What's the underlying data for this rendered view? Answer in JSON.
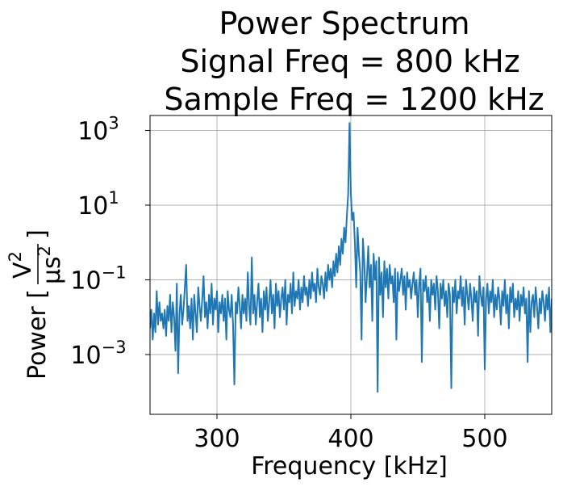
{
  "chart_data": {
    "type": "line",
    "title_lines": [
      "Power Spectrum",
      "Signal Freq = 800 kHz",
      "Sample Freq = 1200 kHz"
    ],
    "xlabel": "Frequency [kHz]",
    "ylabel_prefix": "Power [",
    "ylabel_num": "V",
    "ylabel_num_exp": "2",
    "ylabel_den": "μs",
    "ylabel_den_exp": "2",
    "ylabel_suffix": "]",
    "xlim": [
      250,
      550
    ],
    "ylim_log10": [
      -4.6,
      3.4
    ],
    "y_scale": "log",
    "grid": true,
    "xticks": [
      300,
      400,
      500
    ],
    "yticks": [
      {
        "base": "10",
        "exp": "3",
        "log": 3
      },
      {
        "base": "10",
        "exp": "1",
        "log": 1
      },
      {
        "base": "10",
        "exp": "−1",
        "log": -1
      },
      {
        "base": "10",
        "exp": "−3",
        "log": -3
      }
    ],
    "line_color": "#1f77b4",
    "series": [
      {
        "x": [
          250,
          251,
          252,
          253,
          254,
          255,
          256,
          257,
          258,
          259,
          260,
          261,
          262,
          263,
          264,
          265,
          266,
          267,
          268,
          269,
          270,
          271,
          272,
          273,
          274,
          275,
          276,
          277,
          278,
          279,
          280,
          281,
          282,
          283,
          284,
          285,
          286,
          287,
          288,
          289,
          290,
          291,
          292,
          293,
          294,
          295,
          296,
          297,
          298,
          299,
          300,
          301,
          302,
          303,
          304,
          305,
          306,
          307,
          308,
          309,
          310,
          311,
          312,
          313,
          314,
          315,
          316,
          317,
          318,
          319,
          320,
          321,
          322,
          323,
          324,
          325,
          326,
          327,
          328,
          329,
          330,
          331,
          332,
          333,
          334,
          335,
          336,
          337,
          338,
          339,
          340,
          341,
          342,
          343,
          344,
          345,
          346,
          347,
          348,
          349,
          350,
          351,
          352,
          353,
          354,
          355,
          356,
          357,
          358,
          359,
          360,
          361,
          362,
          363,
          364,
          365,
          366,
          367,
          368,
          369,
          370,
          371,
          372,
          373,
          374,
          375,
          376,
          377,
          378,
          379,
          380,
          381,
          382,
          383,
          384,
          385,
          386,
          387,
          388,
          389,
          390,
          391,
          392,
          393,
          394,
          395,
          396,
          397,
          398,
          399,
          400,
          401,
          402,
          403,
          404,
          405,
          406,
          407,
          408,
          409,
          410,
          411,
          412,
          413,
          414,
          415,
          416,
          417,
          418,
          419,
          420,
          421,
          422,
          423,
          424,
          425,
          426,
          427,
          428,
          429,
          430,
          431,
          432,
          433,
          434,
          435,
          436,
          437,
          438,
          439,
          440,
          441,
          442,
          443,
          444,
          445,
          446,
          447,
          448,
          449,
          450,
          451,
          452,
          453,
          454,
          455,
          456,
          457,
          458,
          459,
          460,
          461,
          462,
          463,
          464,
          465,
          466,
          467,
          468,
          469,
          470,
          471,
          472,
          473,
          474,
          475,
          476,
          477,
          478,
          479,
          480,
          481,
          482,
          483,
          484,
          485,
          486,
          487,
          488,
          489,
          490,
          491,
          492,
          493,
          494,
          495,
          496,
          497,
          498,
          499,
          500,
          501,
          502,
          503,
          504,
          505,
          506,
          507,
          508,
          509,
          510,
          511,
          512,
          513,
          514,
          515,
          516,
          517,
          518,
          519,
          520,
          521,
          522,
          523,
          524,
          525,
          526,
          527,
          528,
          529,
          530,
          531,
          532,
          533,
          534,
          535,
          536,
          537,
          538,
          539,
          540,
          541,
          542,
          543,
          544,
          545,
          546,
          547,
          548,
          549,
          550
        ],
        "log10_power": [
          -2.3,
          -1.8,
          -2.6,
          -1.9,
          -2.4,
          -1.3,
          -2.2,
          -1.6,
          -2.1,
          -1.9,
          -2.3,
          -1.8,
          -2.5,
          -1.7,
          -2.1,
          -1.4,
          -2.4,
          -1.6,
          -2.0,
          -2.9,
          -1.1,
          -3.5,
          -1.9,
          -1.4,
          -2.2,
          -1.8,
          -1.2,
          -0.6,
          -2.1,
          -1.7,
          -2.3,
          -1.5,
          -2.6,
          -1.4,
          -1.9,
          -2.4,
          -1.2,
          -1.7,
          -2.1,
          -1.5,
          -0.9,
          -2.0,
          -1.6,
          -2.3,
          -1.4,
          -1.9,
          -1.1,
          -2.2,
          -1.5,
          -1.8,
          -1.3,
          -2.4,
          -1.6,
          -1.9,
          -1.4,
          -2.1,
          -1.5,
          -2.6,
          -1.3,
          -1.8,
          -2.0,
          -1.4,
          -2.2,
          -3.8,
          -1.6,
          -1.9,
          -1.2,
          -1.7,
          -2.3,
          -1.4,
          -1.9,
          -1.5,
          -2.1,
          -0.8,
          -1.7,
          -2.2,
          -0.4,
          -1.9,
          -1.4,
          -2.2,
          -1.6,
          -1.1,
          -2.0,
          -1.5,
          -2.4,
          -1.3,
          -1.8,
          -1.2,
          -2.1,
          -1.6,
          -1.0,
          -1.9,
          -1.4,
          -2.3,
          -1.1,
          -1.7,
          -1.3,
          -2.0,
          -1.5,
          -1.2,
          -1.8,
          -1.0,
          -2.2,
          -1.4,
          -1.6,
          -1.1,
          -1.9,
          -0.8,
          -1.7,
          -1.3,
          -1.5,
          -1.0,
          -1.8,
          -1.2,
          -1.6,
          -0.9,
          -1.4,
          -1.2,
          -1.7,
          -1.0,
          -1.5,
          -0.8,
          -1.3,
          -1.1,
          -1.6,
          -0.7,
          -1.2,
          -1.4,
          -0.9,
          -1.1,
          -1.5,
          -0.8,
          -1.3,
          -0.6,
          -1.0,
          -0.7,
          -1.2,
          -0.5,
          -0.9,
          -0.3,
          -0.8,
          -0.1,
          -0.6,
          0.1,
          -0.3,
          0.4,
          0.0,
          0.7,
          1.3,
          3.2,
          1.3,
          0.6,
          0.8,
          0.0,
          -1.2,
          0.4,
          -0.3,
          -0.8,
          -2.6,
          0.1,
          -0.5,
          -1.6,
          -0.9,
          -0.1,
          -1.2,
          -0.6,
          -2.1,
          -0.3,
          -1.0,
          -0.5,
          -4.0,
          -0.4,
          -1.4,
          -0.8,
          -2.0,
          -0.5,
          -1.2,
          -0.7,
          -1.5,
          -0.6,
          -1.1,
          -0.9,
          -1.6,
          -0.7,
          -2.6,
          -0.8,
          -1.3,
          -1.0,
          -0.7,
          -1.4,
          -0.9,
          -1.8,
          -0.8,
          -1.2,
          -1.0,
          -1.5,
          -1.1,
          -0.8,
          -1.4,
          -1.0,
          -2.0,
          -1.1,
          -0.7,
          -3.2,
          -1.0,
          -1.3,
          -0.9,
          -1.6,
          -1.2,
          -2.1,
          -1.0,
          -1.4,
          -1.1,
          -1.8,
          -0.9,
          -1.3,
          -2.3,
          -1.1,
          -1.5,
          -1.0,
          -1.7,
          -1.3,
          -2.0,
          -1.1,
          -1.4,
          -3.9,
          -1.2,
          -1.6,
          -1.0,
          -1.9,
          -1.3,
          -1.5,
          -0.9,
          -1.7,
          -1.2,
          -2.2,
          -1.0,
          -1.4,
          -1.8,
          -1.1,
          -1.5,
          -2.1,
          -1.2,
          -1.6,
          -1.3,
          -2.5,
          -0.9,
          -1.4,
          -1.7,
          -1.2,
          -3.4,
          -1.5,
          -1.1,
          -1.9,
          -1.3,
          -1.6,
          -1.0,
          -2.0,
          -1.4,
          -1.8,
          -1.2,
          -1.5,
          -2.2,
          -1.3,
          -1.7,
          -1.0,
          -1.9,
          -1.4,
          -2.3,
          -1.2,
          -1.6,
          -1.1,
          -2.0,
          -1.5,
          -1.8,
          -1.3,
          -2.1,
          -1.4,
          -1.7,
          -1.2,
          -1.9,
          -1.5,
          -3.2,
          -1.3,
          -2.4,
          -1.6,
          -1.4,
          -2.0,
          -1.2,
          -1.7,
          -2.3,
          -1.5,
          -1.9,
          -1.3,
          -1.6,
          -2.1,
          -1.4,
          -1.8,
          -1.2,
          -2.4,
          -1.5
        ]
      }
    ]
  }
}
